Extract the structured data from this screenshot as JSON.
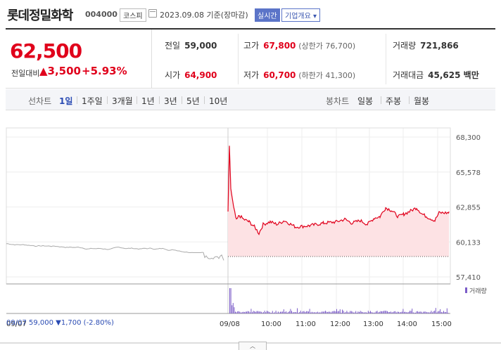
{
  "header": {
    "company": "롯데정밀화학",
    "code": "004000",
    "market": "코스피",
    "date": "2023.09.08 기준(장마감)",
    "realtime": "실시간",
    "corp_info": "기업개요 ▾"
  },
  "summary": {
    "price": "62,500",
    "change_label": "전일대비",
    "change": "▲3,500",
    "change_rate": "+5.93%",
    "prev_label": "전일",
    "prev": "59,000",
    "high_label": "고가",
    "high": "67,800",
    "upper_limit": "(상한가 76,700)",
    "volume_label": "거래량",
    "volume": "721,866",
    "open_label": "시가",
    "open": "64,900",
    "low_label": "저가",
    "low": "60,700",
    "lower_limit": "(하한가 41,300)",
    "amount_label": "거래대금",
    "amount": "45,625 백만"
  },
  "tabs": {
    "line_label": "선차트",
    "periods": [
      "1일",
      "1주일",
      "3개월",
      "1년",
      "3년",
      "5년",
      "10년"
    ],
    "candle_label": "봉차트",
    "candles": [
      "일봉",
      "주봉",
      "월봉"
    ]
  },
  "chart_data": {
    "type": "line",
    "y_ticks": [
      "68,300",
      "65,578",
      "62,855",
      "60,133",
      "57,410"
    ],
    "ylim": [
      57410,
      68300
    ],
    "x_ticks": [
      "09/07",
      "09/08",
      "10:00",
      "11:00",
      "12:00",
      "13:00",
      "14:00",
      "15:00"
    ],
    "volume_label": "거래량",
    "prev_summary": "09/07  59,000 ▼1,700 (-2.80%)",
    "colors": {
      "today": "#e0001b",
      "prev": "#aaaaaa",
      "fill": "#fde2e4",
      "volume": "#7b5cc8"
    }
  }
}
